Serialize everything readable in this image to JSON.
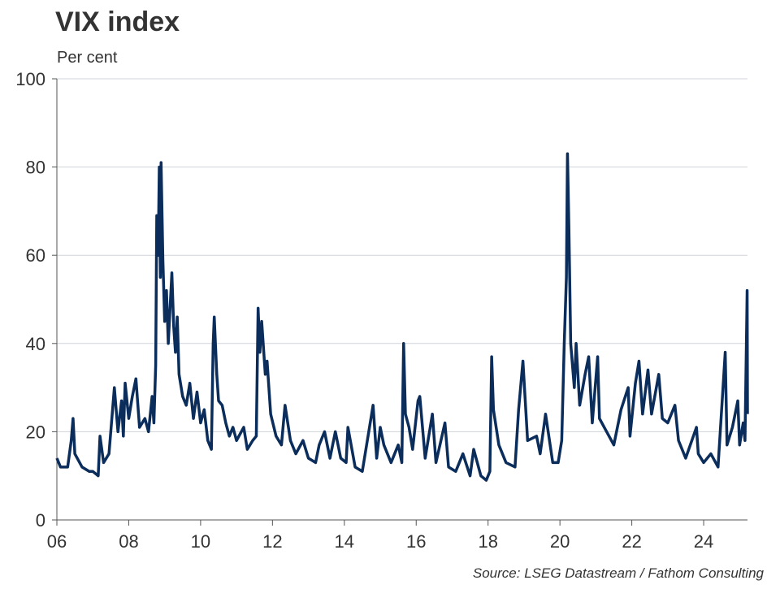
{
  "chart_data": {
    "type": "line",
    "title": "VIX index",
    "subtitle": "Per cent",
    "source": "Source: LSEG Datastream / Fathom Consulting",
    "x": [
      2006.0,
      2006.1,
      2006.3,
      2006.4,
      2006.45,
      2006.5,
      2006.7,
      2006.9,
      2007.0,
      2007.15,
      2007.2,
      2007.3,
      2007.45,
      2007.55,
      2007.6,
      2007.7,
      2007.8,
      2007.85,
      2007.9,
      2008.0,
      2008.1,
      2008.2,
      2008.3,
      2008.45,
      2008.55,
      2008.65,
      2008.7,
      2008.75,
      2008.78,
      2008.82,
      2008.85,
      2008.88,
      2008.9,
      2008.95,
      2009.0,
      2009.05,
      2009.1,
      2009.2,
      2009.25,
      2009.3,
      2009.35,
      2009.4,
      2009.5,
      2009.6,
      2009.7,
      2009.8,
      2009.9,
      2010.0,
      2010.1,
      2010.2,
      2010.3,
      2010.35,
      2010.38,
      2010.45,
      2010.5,
      2010.6,
      2010.7,
      2010.8,
      2010.9,
      2011.0,
      2011.2,
      2011.3,
      2011.45,
      2011.55,
      2011.6,
      2011.65,
      2011.7,
      2011.8,
      2011.85,
      2011.95,
      2012.1,
      2012.25,
      2012.35,
      2012.5,
      2012.65,
      2012.85,
      2013.0,
      2013.2,
      2013.3,
      2013.45,
      2013.6,
      2013.75,
      2013.9,
      2014.05,
      2014.1,
      2014.3,
      2014.5,
      2014.6,
      2014.8,
      2014.9,
      2015.0,
      2015.1,
      2015.3,
      2015.5,
      2015.6,
      2015.65,
      2015.7,
      2015.8,
      2015.9,
      2016.05,
      2016.1,
      2016.25,
      2016.45,
      2016.55,
      2016.8,
      2016.9,
      2017.1,
      2017.3,
      2017.5,
      2017.6,
      2017.8,
      2017.95,
      2018.05,
      2018.1,
      2018.15,
      2018.3,
      2018.5,
      2018.75,
      2018.85,
      2018.97,
      2019.1,
      2019.35,
      2019.45,
      2019.6,
      2019.8,
      2019.95,
      2020.05,
      2020.12,
      2020.18,
      2020.21,
      2020.25,
      2020.3,
      2020.4,
      2020.45,
      2020.55,
      2020.7,
      2020.8,
      2020.9,
      2021.05,
      2021.1,
      2021.3,
      2021.5,
      2021.7,
      2021.9,
      2021.95,
      2022.1,
      2022.2,
      2022.3,
      2022.45,
      2022.55,
      2022.75,
      2022.85,
      2023.0,
      2023.2,
      2023.3,
      2023.5,
      2023.8,
      2023.85,
      2024.0,
      2024.2,
      2024.4,
      2024.6,
      2024.65,
      2024.8,
      2024.95,
      2025.0,
      2025.1,
      2025.15,
      2025.2,
      2025.21,
      2025.22
    ],
    "series": [
      {
        "color": "#0b2d5b",
        "values": [
          14,
          12,
          12,
          18,
          23,
          15,
          12,
          11,
          11,
          10,
          19,
          13,
          15,
          25,
          30,
          20,
          27,
          19,
          31,
          23,
          28,
          32,
          21,
          23,
          20,
          28,
          22,
          35,
          69,
          60,
          80,
          55,
          81,
          59,
          45,
          52,
          40,
          56,
          44,
          38,
          46,
          33,
          28,
          26,
          31,
          23,
          29,
          22,
          25,
          18,
          16,
          40,
          46,
          33,
          27,
          26,
          22,
          19,
          21,
          18,
          21,
          16,
          18,
          19,
          48,
          38,
          45,
          33,
          36,
          24,
          19,
          17,
          26,
          18,
          15,
          18,
          14,
          13,
          17,
          20,
          14,
          20,
          14,
          13,
          21,
          12,
          11,
          16,
          26,
          14,
          21,
          17,
          13,
          17,
          13,
          40,
          24,
          21,
          16,
          27,
          28,
          14,
          24,
          13,
          22,
          12,
          11,
          15,
          10,
          16,
          10,
          9,
          11,
          37,
          25,
          17,
          13,
          12,
          25,
          36,
          18,
          19,
          15,
          24,
          13,
          13,
          18,
          40,
          55,
          83,
          66,
          40,
          30,
          40,
          26,
          33,
          37,
          22,
          37,
          23,
          20,
          17,
          25,
          30,
          19,
          31,
          36,
          24,
          34,
          24,
          33,
          23,
          22,
          26,
          18,
          14,
          21,
          15,
          13,
          15,
          12,
          38,
          17,
          21,
          27,
          17,
          22,
          18,
          46,
          52,
          24
        ]
      }
    ],
    "xlim": [
      2006,
      2025.22
    ],
    "xticks": [
      {
        "value": 2006,
        "label": "06"
      },
      {
        "value": 2008,
        "label": "08"
      },
      {
        "value": 2010,
        "label": "10"
      },
      {
        "value": 2012,
        "label": "12"
      },
      {
        "value": 2014,
        "label": "14"
      },
      {
        "value": 2016,
        "label": "16"
      },
      {
        "value": 2018,
        "label": "18"
      },
      {
        "value": 2020,
        "label": "20"
      },
      {
        "value": 2022,
        "label": "22"
      },
      {
        "value": 2024,
        "label": "24"
      }
    ],
    "ylim": [
      0,
      100
    ],
    "yticks": [
      0,
      20,
      40,
      60,
      80,
      100
    ],
    "grid": true
  }
}
